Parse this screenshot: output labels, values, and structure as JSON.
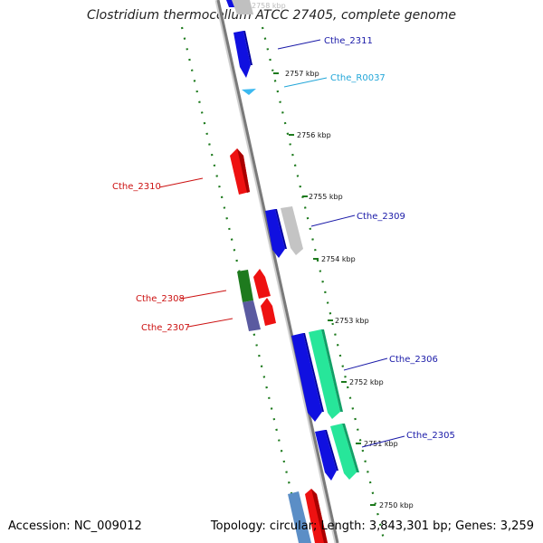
{
  "title": "Clostridium thermocellum ATCC 27405, complete genome",
  "footer": {
    "accession": "Accession: NC_009012",
    "summary": "Topology: circular; Length: 3,843,301 bp; Genes: 3,259"
  },
  "colors": {
    "background": "#ffffff",
    "backbone": "#8a8a8a",
    "tick": "#1d7a1d",
    "blue_label": "#1a1aa8",
    "red_label": "#cc1111",
    "cyan_label": "#22a6d8",
    "grey_label": "#111111"
  },
  "kbp_markers": [
    "2750 kbp",
    "2751 kbp",
    "2752 kbp",
    "2753 kbp",
    "2754 kbp",
    "2755 kbp",
    "2756 kbp",
    "2757 kbp",
    "2758 kbp"
  ],
  "genes": [
    {
      "id": "Cthe_2311",
      "label": "Cthe_2311",
      "strand": "forward",
      "color": "#1010e0",
      "label_color": "#1a1aa8"
    },
    {
      "id": "Cthe_R0037",
      "label": "Cthe_R0037",
      "strand": "forward",
      "color": "#3cb9f0",
      "label_color": "#22a6d8"
    },
    {
      "id": "Cthe_2310",
      "label": "Cthe_2310",
      "strand": "reverse",
      "color": "#ee1111",
      "label_color": "#cc1111"
    },
    {
      "id": "Cthe_2309",
      "label": "Cthe_2309",
      "strand": "forward",
      "color": "#1010e0",
      "label_color": "#1a1aa8"
    },
    {
      "id": "Cthe_2308",
      "label": "Cthe_2308",
      "strand": "reverse",
      "color": "#ee1111",
      "label_color": "#cc1111"
    },
    {
      "id": "Cthe_2307",
      "label": "Cthe_2307",
      "strand": "reverse",
      "color": "#ee1111",
      "label_color": "#cc1111"
    },
    {
      "id": "Cthe_2306",
      "label": "Cthe_2306",
      "strand": "forward",
      "color": "#1010e0",
      "label_color": "#1a1aa8"
    },
    {
      "id": "Cthe_2305",
      "label": "Cthe_2305",
      "strand": "forward",
      "color": "#1010e0",
      "label_color": "#1a1aa8"
    }
  ]
}
